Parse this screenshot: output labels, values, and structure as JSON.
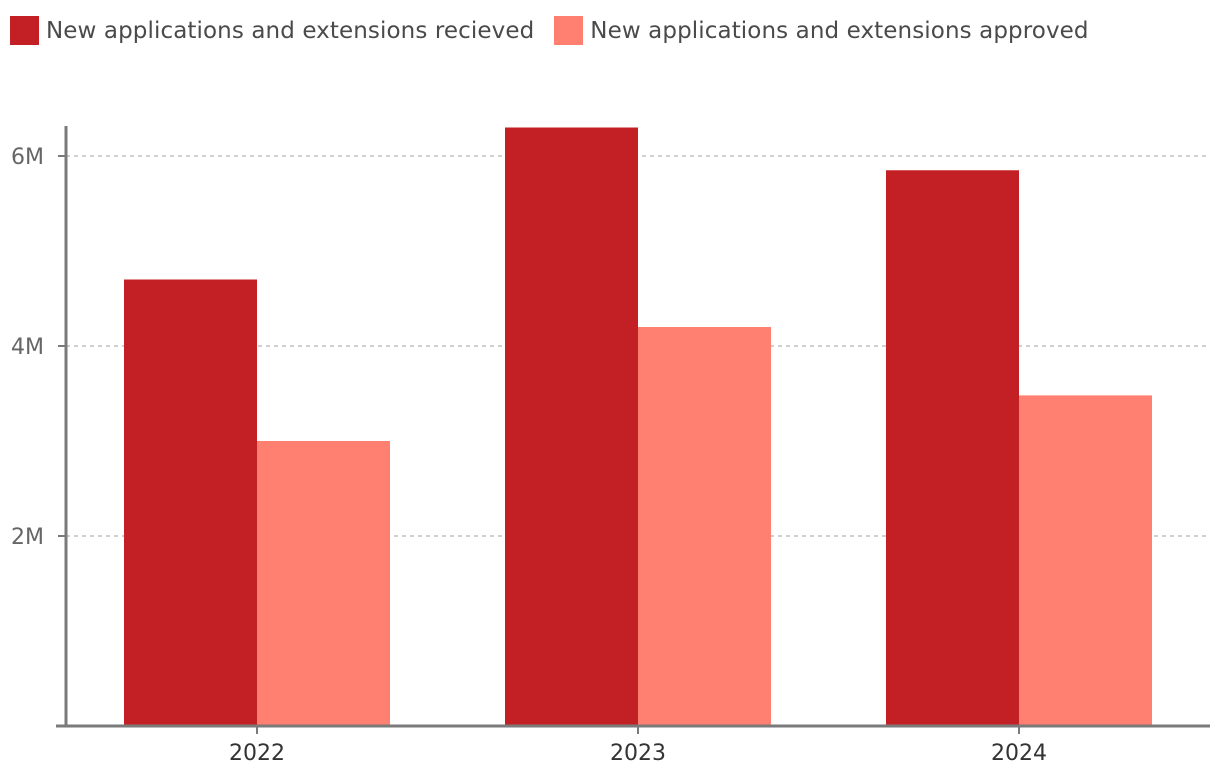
{
  "legend": {
    "items": [
      {
        "label": "New applications and extensions recieved",
        "color": "#c32026"
      },
      {
        "label": "New applications and extensions approved",
        "color": "#ff8070"
      }
    ]
  },
  "colors": {
    "axis": "#7a7a7a",
    "grid": "#b5b5b5"
  },
  "chart_data": {
    "type": "bar",
    "title": "",
    "xlabel": "",
    "ylabel": "",
    "categories": [
      "2022",
      "2023",
      "2024"
    ],
    "series": [
      {
        "name": "New applications and extensions recieved",
        "color": "#c32026",
        "values": [
          4700000,
          6300000,
          5850000
        ]
      },
      {
        "name": "New applications and extensions approved",
        "color": "#ff8070",
        "values": [
          3000000,
          4200000,
          3480000
        ]
      }
    ],
    "yticks": [
      {
        "value": 2000000,
        "label": "2M"
      },
      {
        "value": 4000000,
        "label": "4M"
      },
      {
        "value": 6000000,
        "label": "6M"
      }
    ],
    "ylim": [
      0,
      6300000
    ],
    "grid": true,
    "legend_position": "top-left"
  }
}
